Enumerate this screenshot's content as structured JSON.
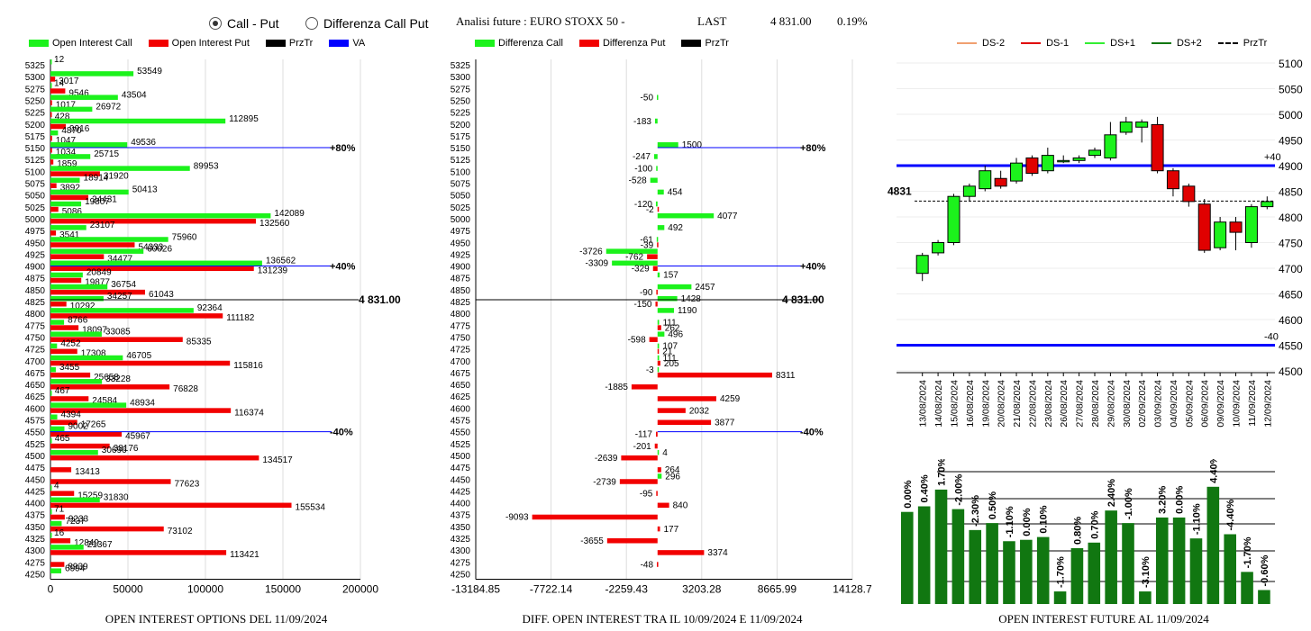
{
  "controls": {
    "radio_call_put": "Call - Put",
    "radio_diff": "Differenza Call Put",
    "selected": "call_put"
  },
  "header": {
    "title": "Analisi future : EURO STOXX 50 -",
    "last_label": "LAST",
    "last_value": "4 831.00",
    "change": "0.19%"
  },
  "colors": {
    "green": "#1cf21c",
    "red": "#f20000",
    "black": "#000000",
    "blue": "#0000ff",
    "dark_green": "#117711",
    "candle_red": "#e00000"
  },
  "panel1": {
    "legend": [
      "Open Interest Call",
      "Open Interest Put",
      "PrzTr",
      "VA"
    ],
    "caption": "OPEN INTEREST OPTIONS DEL 11/09/2024",
    "x_ticks": [
      "0",
      "50000",
      "100000",
      "150000",
      "200000"
    ],
    "x_max": 200000,
    "levels": [
      {
        "strike": 5150,
        "label": "+80%"
      },
      {
        "strike": 4900,
        "label": "+40%"
      },
      {
        "strike": 4550,
        "label": "-40%"
      }
    ],
    "last_label": "4 831.00"
  },
  "panel2": {
    "legend": [
      "Differenza Call",
      "Differenza Put",
      "PrzTr"
    ],
    "caption": "DIFF. OPEN INTEREST TRA IL 10/09/2024 E 11/09/2024",
    "x_ticks": [
      "-13184.85",
      "-7722.14",
      "-2259.43",
      "3203.28",
      "8665.99",
      "14128.7"
    ],
    "x_min": -13184.85,
    "x_max": 14128.7,
    "levels": [
      {
        "strike": 5150,
        "label": "+80%"
      },
      {
        "strike": 4900,
        "label": "+40%"
      },
      {
        "strike": 4550,
        "label": "-40%"
      }
    ],
    "last_label": "4 831.00"
  },
  "chart_data": [
    {
      "type": "bar",
      "strikes": [
        5325,
        5300,
        5275,
        5250,
        5225,
        5200,
        5175,
        5150,
        5125,
        5100,
        5075,
        5050,
        5025,
        5000,
        4975,
        4950,
        4925,
        4900,
        4875,
        4850,
        4825,
        4800,
        4775,
        4750,
        4725,
        4700,
        4675,
        4650,
        4625,
        4600,
        4575,
        4550,
        4525,
        4500,
        4475,
        4450,
        4425,
        4400,
        4375,
        4350,
        4325,
        4300,
        4275,
        4250
      ],
      "series": [
        {
          "name": "Open Interest Call",
          "values": [
            12,
            53549,
            14,
            43504,
            26972,
            112895,
            4870,
            49536,
            25715,
            89953,
            18914,
            50413,
            19807,
            142089,
            23107,
            75960,
            60026,
            136562,
            20849,
            36754,
            34257,
            92364,
            8766,
            33085,
            4252,
            46705,
            3455,
            33228,
            467,
            48934,
            4394,
            9002,
            465,
            30696,
            0,
            0,
            4,
            31830,
            71,
            7237,
            16,
            21367,
            0,
            6994
          ]
        },
        {
          "name": "Open Interest Put",
          "values": [
            0,
            3017,
            9546,
            1017,
            428,
            9916,
            1047,
            1034,
            1859,
            31920,
            3892,
            24431,
            5086,
            132560,
            3541,
            54333,
            34477,
            131239,
            19877,
            61043,
            10292,
            111182,
            18097,
            85335,
            17308,
            115816,
            25658,
            76828,
            24584,
            116374,
            17265,
            45967,
            38176,
            134517,
            13413,
            77623,
            15259,
            155534,
            9233,
            73102,
            12849,
            113421,
            8939,
            0
          ]
        }
      ]
    },
    {
      "type": "bar",
      "strikes": [
        5325,
        5300,
        5275,
        5250,
        5225,
        5200,
        5175,
        5150,
        5125,
        5100,
        5075,
        5050,
        5025,
        5000,
        4975,
        4950,
        4925,
        4900,
        4875,
        4850,
        4825,
        4800,
        4775,
        4750,
        4725,
        4700,
        4675,
        4650,
        4625,
        4600,
        4575,
        4550,
        4525,
        4500,
        4475,
        4450,
        4425,
        4400,
        4375,
        4350,
        4325,
        4300,
        4275,
        4250
      ],
      "series": [
        {
          "name": "Differenza Call",
          "values": [
            0,
            0,
            0,
            -50,
            0,
            -183,
            0,
            1500,
            -247,
            -100,
            -528,
            454,
            -120,
            4077,
            492,
            -61,
            -3726,
            -3309,
            157,
            2457,
            1428,
            1190,
            111,
            496,
            107,
            111,
            -3,
            0,
            0,
            0,
            0,
            0,
            0,
            4,
            0,
            296,
            0,
            0,
            0,
            0,
            0,
            0,
            0,
            0
          ]
        },
        {
          "name": "Differenza Put",
          "values": [
            0,
            0,
            0,
            0,
            0,
            0,
            0,
            0,
            0,
            0,
            0,
            0,
            -2,
            0,
            0,
            -39,
            -762,
            -329,
            0,
            -90,
            -150,
            0,
            262,
            -598,
            21,
            205,
            8311,
            -1885,
            4259,
            2032,
            3877,
            -117,
            -201,
            -2639,
            264,
            -2739,
            -95,
            840,
            -9093,
            177,
            -3655,
            3374,
            -48,
            0
          ]
        }
      ]
    },
    {
      "type": "candlestick",
      "legend": [
        "DS-2",
        "DS-1",
        "DS+1",
        "DS+2",
        "PrzTr"
      ],
      "dates": [
        "13/08/2024",
        "14/08/2024",
        "15/08/2024",
        "16/08/2024",
        "19/08/2024",
        "20/08/2024",
        "21/08/2024",
        "22/08/2024",
        "23/08/2024",
        "26/08/2024",
        "27/08/2024",
        "28/08/2024",
        "29/08/2024",
        "30/08/2024",
        "02/09/2024",
        "03/09/2024",
        "04/09/2024",
        "05/09/2024",
        "06/09/2024",
        "09/09/2024",
        "10/09/2024",
        "11/09/2024",
        "12/09/2024"
      ],
      "open": [
        4690,
        4730,
        4750,
        4840,
        4855,
        4875,
        4870,
        4915,
        4890,
        4910,
        4910,
        4920,
        4915,
        4965,
        4975,
        4980,
        4890,
        4860,
        4825,
        4740,
        4790,
        4750,
        4820
      ],
      "close": [
        4725,
        4750,
        4840,
        4860,
        4890,
        4860,
        4905,
        4885,
        4920,
        4910,
        4915,
        4930,
        4960,
        4985,
        4985,
        4890,
        4855,
        4830,
        4735,
        4790,
        4770,
        4820,
        4830
      ],
      "high": [
        4730,
        4755,
        4845,
        4865,
        4900,
        4890,
        4915,
        4920,
        4935,
        4920,
        4920,
        4935,
        4985,
        4995,
        4990,
        4995,
        4895,
        4865,
        4835,
        4800,
        4800,
        4825,
        4840
      ],
      "low": [
        4675,
        4725,
        4745,
        4830,
        4850,
        4855,
        4865,
        4880,
        4885,
        4905,
        4905,
        4915,
        4910,
        4960,
        4945,
        4885,
        4840,
        4820,
        4730,
        4735,
        4735,
        4740,
        4815
      ],
      "y_ticks": [
        "5100",
        "5050",
        "5000",
        "4950",
        "4900",
        "4850",
        "4800",
        "4750",
        "4700",
        "4650",
        "4600",
        "4550",
        "4500"
      ],
      "y_min": 4500,
      "y_max": 5100,
      "bands": [
        {
          "value": 4900,
          "label": "+40"
        },
        {
          "value": 4550,
          "label": "-40"
        }
      ],
      "prztr": 4831,
      "prztr_label": "4831"
    },
    {
      "type": "bar",
      "labels": [
        "0.00%",
        "0.40%",
        "1.70%",
        "-2.00%",
        "-2.30%",
        "0.50%",
        "-1.10%",
        "0.00%",
        "0.10%",
        "-1.70%",
        "0.80%",
        "0.70%",
        "2.40%",
        "-1.00%",
        "-3.10%",
        "3.20%",
        "0.00%",
        "-1.10%",
        "4.40%",
        "-4.40%",
        "-1.70%",
        "-0.60%"
      ],
      "values": [
        0.66,
        0.7,
        0.82,
        0.68,
        0.53,
        0.58,
        0.45,
        0.46,
        0.48,
        0.09,
        0.4,
        0.44,
        0.67,
        0.58,
        0.09,
        0.62,
        0.62,
        0.47,
        0.84,
        0.5,
        0.23,
        0.1
      ]
    }
  ],
  "panel3": {
    "caption": "OPEN INTEREST FUTURE AL 11/09/2024"
  }
}
